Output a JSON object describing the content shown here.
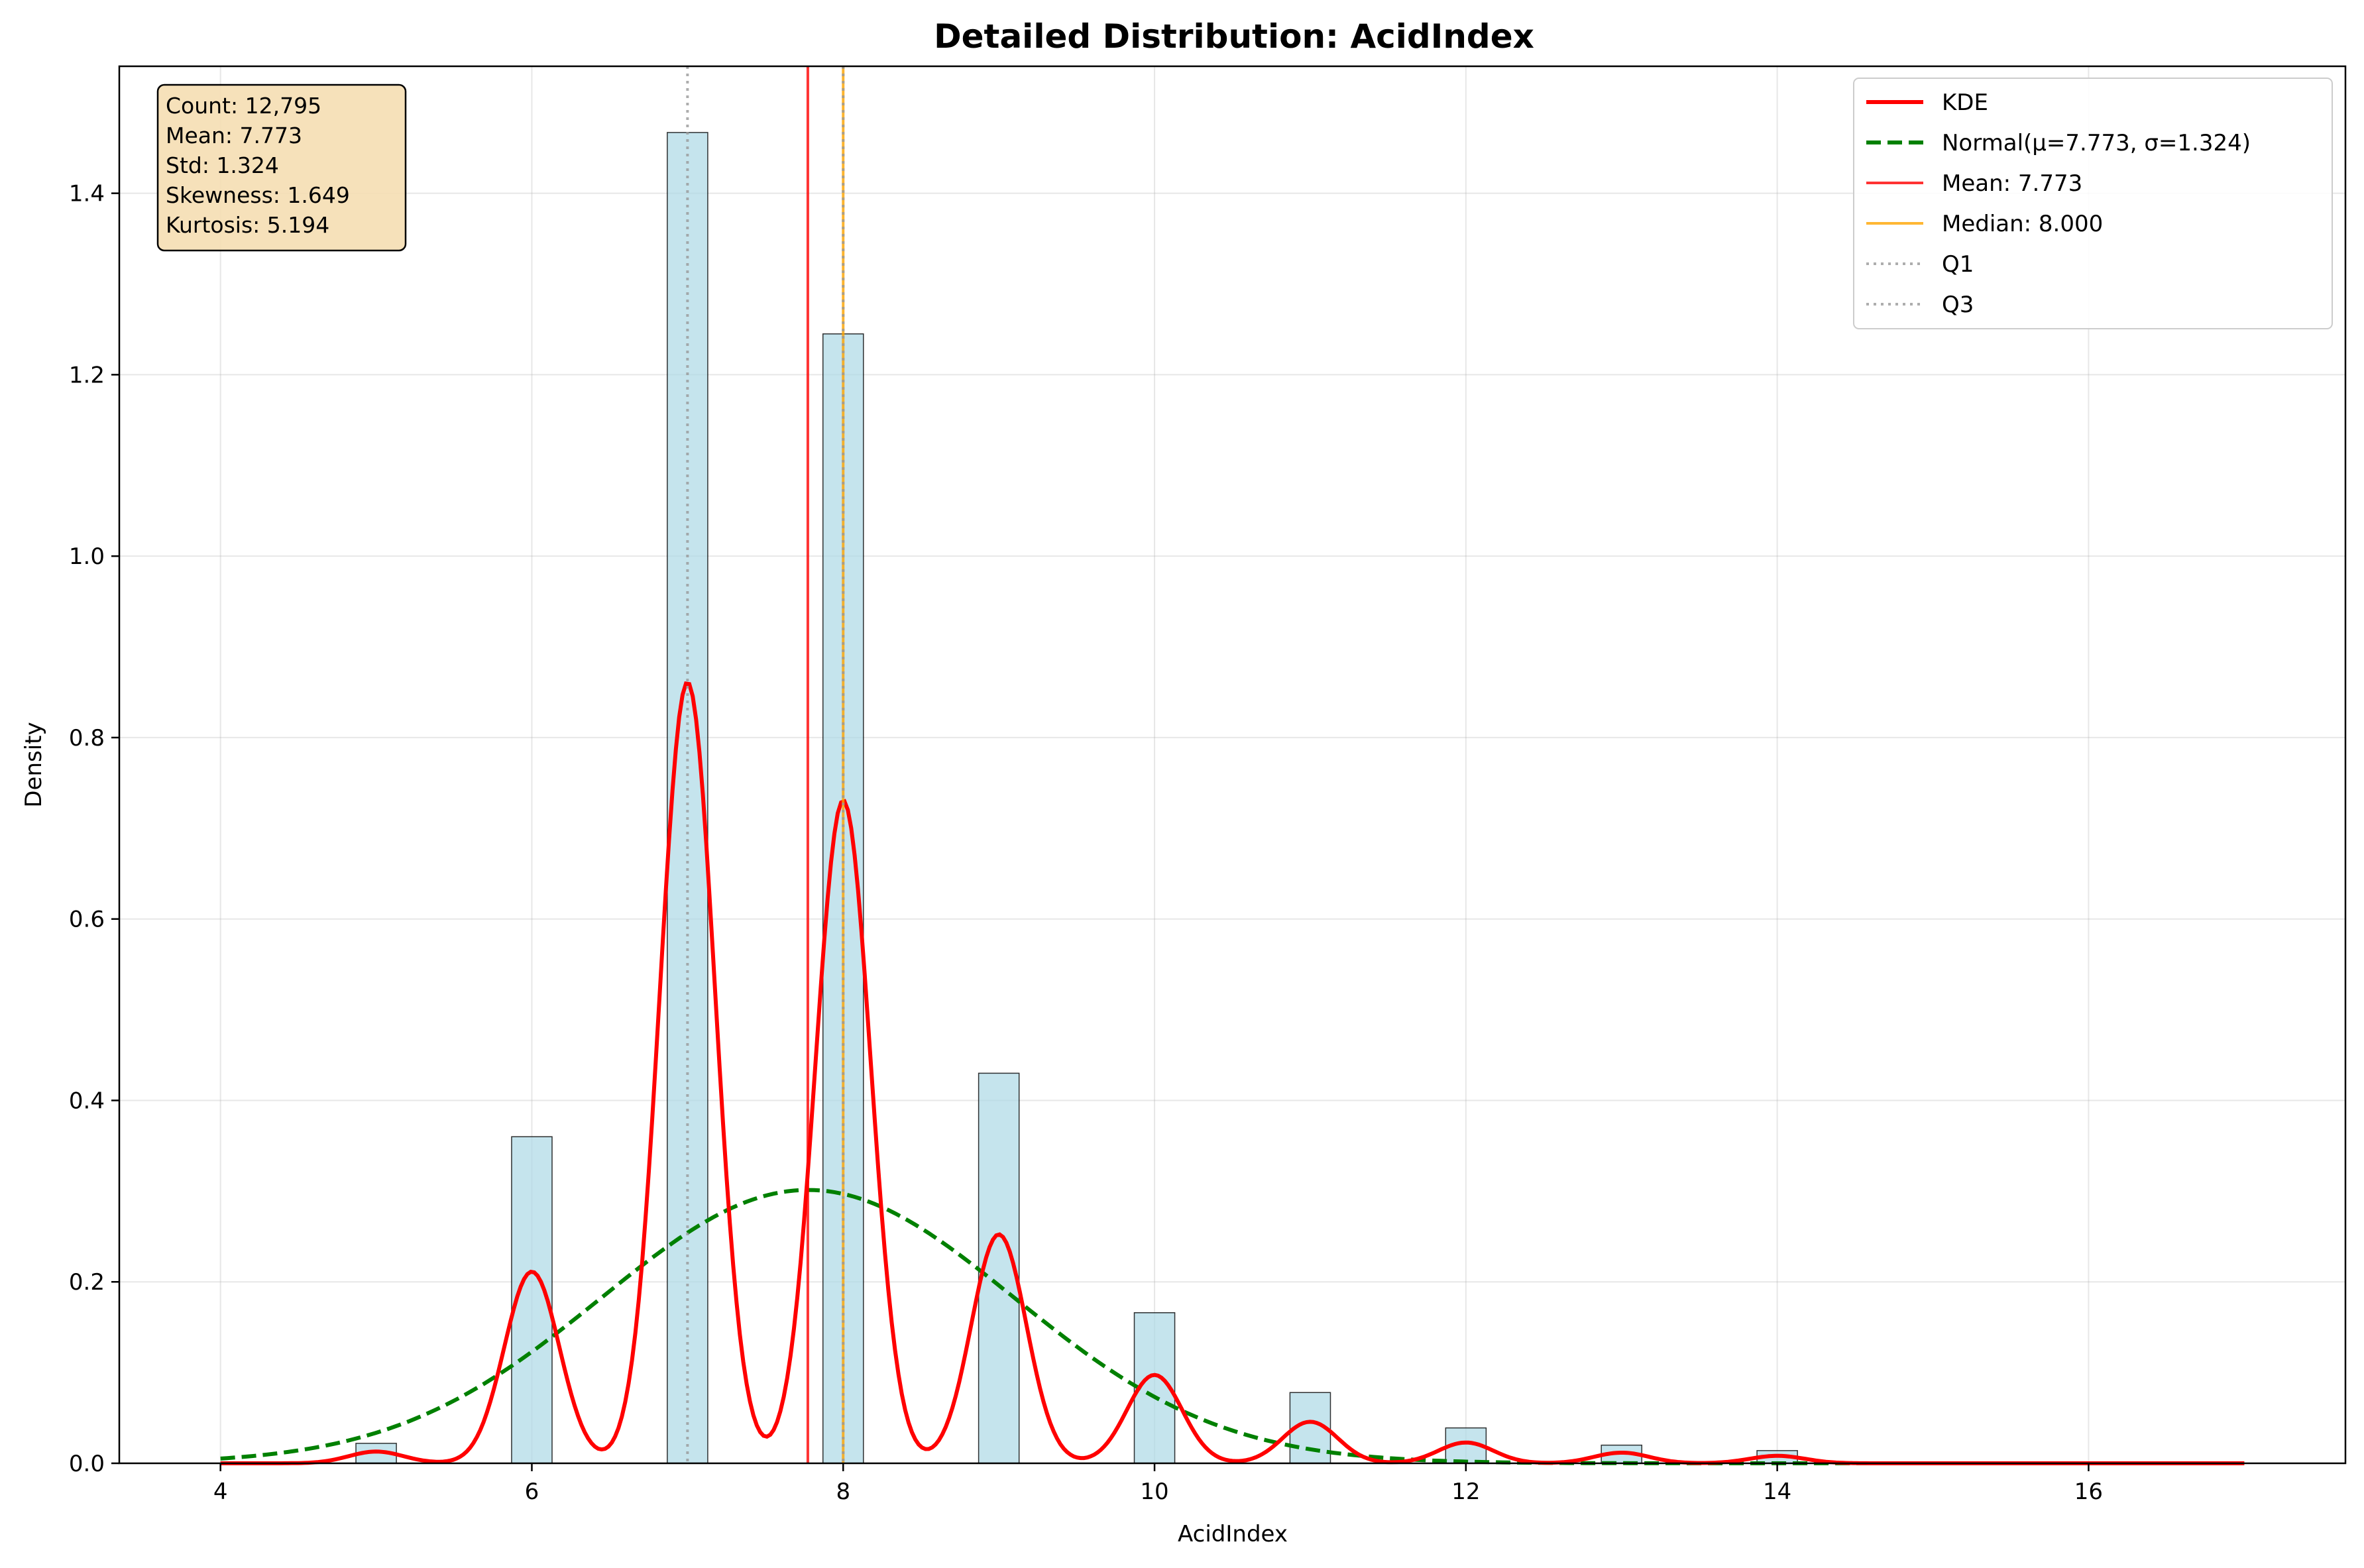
{
  "chart_data": {
    "type": "bar",
    "title": "Detailed Distribution: AcidIndex",
    "xlabel": "AcidIndex",
    "ylabel": "Density",
    "xlim": [
      3.35,
      17.65
    ],
    "ylim": [
      0,
      1.54
    ],
    "xticks": [
      4,
      6,
      8,
      10,
      12,
      14,
      16
    ],
    "xtick_labels": [
      "4",
      "6",
      "8",
      "10",
      "12",
      "14",
      "16"
    ],
    "yticks": [
      0.0,
      0.2,
      0.4,
      0.6,
      0.8,
      1.0,
      1.2,
      1.4
    ],
    "ytick_labels": [
      "0.0",
      "0.2",
      "0.4",
      "0.6",
      "0.8",
      "1.0",
      "1.2",
      "1.4"
    ],
    "grid": true,
    "legend_position": "top-right",
    "histogram": {
      "color": "#add8e6",
      "bin_width": 0.26,
      "bins": [
        {
          "x": 5,
          "density": 0.022
        },
        {
          "x": 6,
          "density": 0.36
        },
        {
          "x": 7,
          "density": 1.467
        },
        {
          "x": 8,
          "density": 1.245
        },
        {
          "x": 9,
          "density": 0.43
        },
        {
          "x": 10,
          "density": 0.166
        },
        {
          "x": 11,
          "density": 0.078
        },
        {
          "x": 12,
          "density": 0.039
        },
        {
          "x": 13,
          "density": 0.02
        },
        {
          "x": 14,
          "density": 0.014
        }
      ]
    },
    "kde": {
      "name": "KDE",
      "color": "#ff0000",
      "bandwidth": 0.177,
      "x_range": [
        4,
        17
      ]
    },
    "normal": {
      "name": "Normal(μ=7.773, σ=1.324)",
      "color": "#008000",
      "mu": 7.773,
      "sigma": 1.324,
      "x_range": [
        4,
        17
      ]
    },
    "vlines": [
      {
        "name": "Mean: 7.773",
        "x": 7.773,
        "color": "#ff0000",
        "style": "solid"
      },
      {
        "name": "Median: 8.000",
        "x": 8.0,
        "color": "#ffa500",
        "style": "solid"
      },
      {
        "name": "Q1",
        "x": 7.0,
        "color": "#999999",
        "style": "dotted"
      },
      {
        "name": "Q3",
        "x": 8.0,
        "color": "#999999",
        "style": "dotted"
      }
    ],
    "stats_box": [
      "Count: 12,795",
      "Mean: 7.773",
      "Std: 1.324",
      "Skewness: 1.649",
      "Kurtosis: 5.194"
    ],
    "stats_box_color": "#f5deb3"
  }
}
